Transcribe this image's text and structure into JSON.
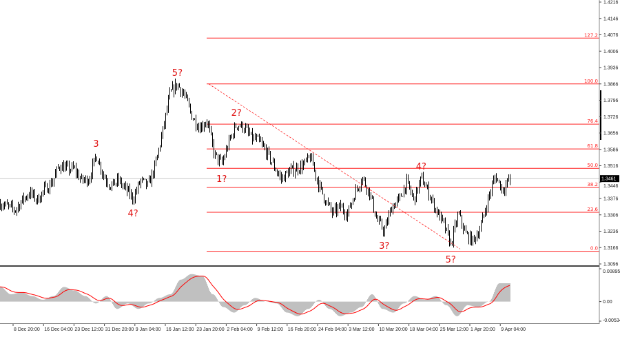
{
  "chart_data": {
    "type": "line",
    "subtype": "candlestick",
    "price_axis": {
      "ticks": [
        "1.4216",
        "1.4146",
        "1.4076",
        "1.4006",
        "1.3936",
        "1.3866",
        "1.3796",
        "1.3726",
        "1.3656",
        "1.3586",
        "1.3516",
        "1.3446",
        "1.3376",
        "1.3306",
        "1.3236",
        "1.3166",
        "1.3096"
      ],
      "range": [
        1.3096,
        1.4216
      ]
    },
    "current_price": "1.3461",
    "x_axis": {
      "ticks": [
        "8 Dec 20:00",
        "16 Dec 04:00",
        "23 Dec 12:00",
        "31 Dec 20:00",
        "9 Jan 04:00",
        "16 Jan 12:00",
        "23 Jan 20:00",
        "2 Feb 04:00",
        "9 Feb 12:00",
        "16 Feb 20:00",
        "24 Feb 04:00",
        "3 Mar 12:00",
        "10 Mar 20:00",
        "18 Mar 04:00",
        "25 Mar 12:00",
        "1 Apr 20:00",
        "9 Apr 04:00"
      ]
    },
    "closes": [
      1.3355,
      1.3341,
      1.3326,
      1.337,
      1.34,
      1.337,
      1.3414,
      1.3444,
      1.3518,
      1.3503,
      1.3503,
      1.3453,
      1.3459,
      1.3562,
      1.3473,
      1.3429,
      1.3453,
      1.3414,
      1.3376,
      1.3453,
      1.3429,
      1.3518,
      1.3665,
      1.3827,
      1.3865,
      1.3812,
      1.3724,
      1.368,
      1.3709,
      1.3562,
      1.3523,
      1.3621,
      1.3694,
      1.368,
      1.3635,
      1.3621,
      1.3576,
      1.3518,
      1.3459,
      1.3488,
      1.3503,
      1.3518,
      1.3553,
      1.3444,
      1.337,
      1.3311,
      1.3341,
      1.3311,
      1.34,
      1.3465,
      1.34,
      1.3282,
      1.3238,
      1.3341,
      1.337,
      1.3444,
      1.337,
      1.3465,
      1.34,
      1.3326,
      1.3267,
      1.3179,
      1.3311,
      1.3223,
      1.3193,
      1.3252,
      1.337,
      1.3473,
      1.3414,
      1.3461
    ],
    "fibonacci": {
      "color": "#ff2020",
      "levels": [
        {
          "label": "127.2",
          "price": 1.4062
        },
        {
          "label": "100.0",
          "price": 1.3866
        },
        {
          "label": "76.4",
          "price": 1.3694
        },
        {
          "label": "61.8",
          "price": 1.3588
        },
        {
          "label": "50.0",
          "price": 1.3505
        },
        {
          "label": "38.2",
          "price": 1.3423
        },
        {
          "label": "23.6",
          "price": 1.3317
        },
        {
          "label": "0.0",
          "price": 1.315
        }
      ]
    },
    "wave_labels": [
      {
        "text": "5?",
        "at_close": 24,
        "pos": "above"
      },
      {
        "text": "3",
        "at_close": 13,
        "pos": "above"
      },
      {
        "text": "4?",
        "at_close": 18,
        "pos": "below"
      },
      {
        "text": "1?",
        "at_close": 30,
        "pos": "below"
      },
      {
        "text": "2?",
        "at_close": 32,
        "pos": "above"
      },
      {
        "text": "3?",
        "at_close": 52,
        "pos": "below"
      },
      {
        "text": "4?",
        "at_close": 57,
        "pos": "above"
      },
      {
        "text": "5?",
        "at_close": 61,
        "pos": "below"
      }
    ],
    "trendline": {
      "style": "dashed",
      "color": "#ff2020",
      "from_price": 1.3866,
      "to_price": 1.316
    },
    "oscillator": {
      "ticks": [
        "0.00895",
        "0.00",
        "-0.00534"
      ],
      "range": [
        -0.00534,
        0.00895
      ],
      "histogram_color": "#c0c0c0",
      "signal_color": "#ff0000",
      "histogram": [
        0.004,
        0.002,
        0.0025,
        0.0015,
        0.0005,
        0.0015,
        0.004,
        0.003,
        0.0015,
        -0.0005,
        0.0015,
        -0.002,
        -0.0005,
        -0.002,
        -0.0005,
        0.001,
        0.002,
        0.006,
        0.0075,
        0.007,
        0.002,
        -0.0015,
        -0.003,
        -0.001,
        0.001,
        0,
        -0.0005,
        -0.003,
        -0.004,
        -0.002,
        0.0005,
        -0.002,
        -0.004,
        -0.003,
        -0.0015,
        0.002,
        -0.002,
        -0.003,
        -0.0005,
        0.0015,
        0.0005,
        0.0015,
        -0.001,
        -0.004,
        -0.001,
        -0.0015,
        0,
        0.005,
        0.005
      ]
    }
  }
}
